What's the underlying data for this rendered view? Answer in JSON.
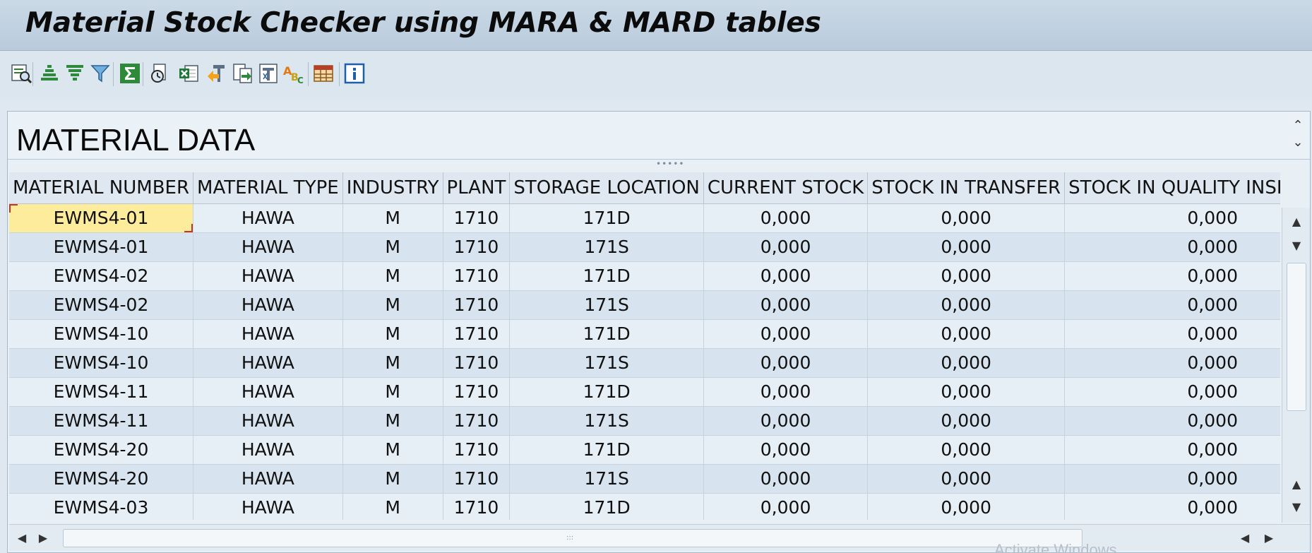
{
  "window": {
    "title": "Material Stock Checker using MARA & MARD tables"
  },
  "toolbar": {
    "buttons": [
      {
        "name": "details-icon"
      },
      {
        "name": "sort-ascending-icon"
      },
      {
        "name": "sort-descending-icon"
      },
      {
        "name": "filter-icon"
      },
      {
        "name": "total-sum-icon"
      },
      {
        "name": "print-preview-icon"
      },
      {
        "name": "export-spreadsheet-icon"
      },
      {
        "name": "export-text-icon"
      },
      {
        "name": "export-local-file-icon"
      },
      {
        "name": "word-processing-icon"
      },
      {
        "name": "abc-analysis-icon"
      },
      {
        "name": "change-layout-icon"
      },
      {
        "name": "info-icon"
      }
    ]
  },
  "panel": {
    "title": "MATERIAL DATA"
  },
  "table": {
    "columns": [
      "MATERIAL NUMBER",
      "MATERIAL TYPE",
      "INDUSTRY",
      "PLANT",
      "STORAGE LOCATION",
      "CURRENT STOCK",
      "STOCK IN TRANSFER",
      "STOCK IN QUALITY INSPE"
    ],
    "rows": [
      [
        "EWMS4-01",
        "HAWA",
        "M",
        "1710",
        "171D",
        "0,000",
        "0,000",
        "0,000"
      ],
      [
        "EWMS4-01",
        "HAWA",
        "M",
        "1710",
        "171S",
        "0,000",
        "0,000",
        "0,000"
      ],
      [
        "EWMS4-02",
        "HAWA",
        "M",
        "1710",
        "171D",
        "0,000",
        "0,000",
        "0,000"
      ],
      [
        "EWMS4-02",
        "HAWA",
        "M",
        "1710",
        "171S",
        "0,000",
        "0,000",
        "0,000"
      ],
      [
        "EWMS4-10",
        "HAWA",
        "M",
        "1710",
        "171D",
        "0,000",
        "0,000",
        "0,000"
      ],
      [
        "EWMS4-10",
        "HAWA",
        "M",
        "1710",
        "171S",
        "0,000",
        "0,000",
        "0,000"
      ],
      [
        "EWMS4-11",
        "HAWA",
        "M",
        "1710",
        "171D",
        "0,000",
        "0,000",
        "0,000"
      ],
      [
        "EWMS4-11",
        "HAWA",
        "M",
        "1710",
        "171S",
        "0,000",
        "0,000",
        "0,000"
      ],
      [
        "EWMS4-20",
        "HAWA",
        "M",
        "1710",
        "171D",
        "0,000",
        "0,000",
        "0,000"
      ],
      [
        "EWMS4-20",
        "HAWA",
        "M",
        "1710",
        "171S",
        "0,000",
        "0,000",
        "0,000"
      ],
      [
        "EWMS4-03",
        "HAWA",
        "M",
        "1710",
        "171D",
        "0,000",
        "0,000",
        "0,000"
      ]
    ]
  },
  "watermark": "Activate Windows"
}
